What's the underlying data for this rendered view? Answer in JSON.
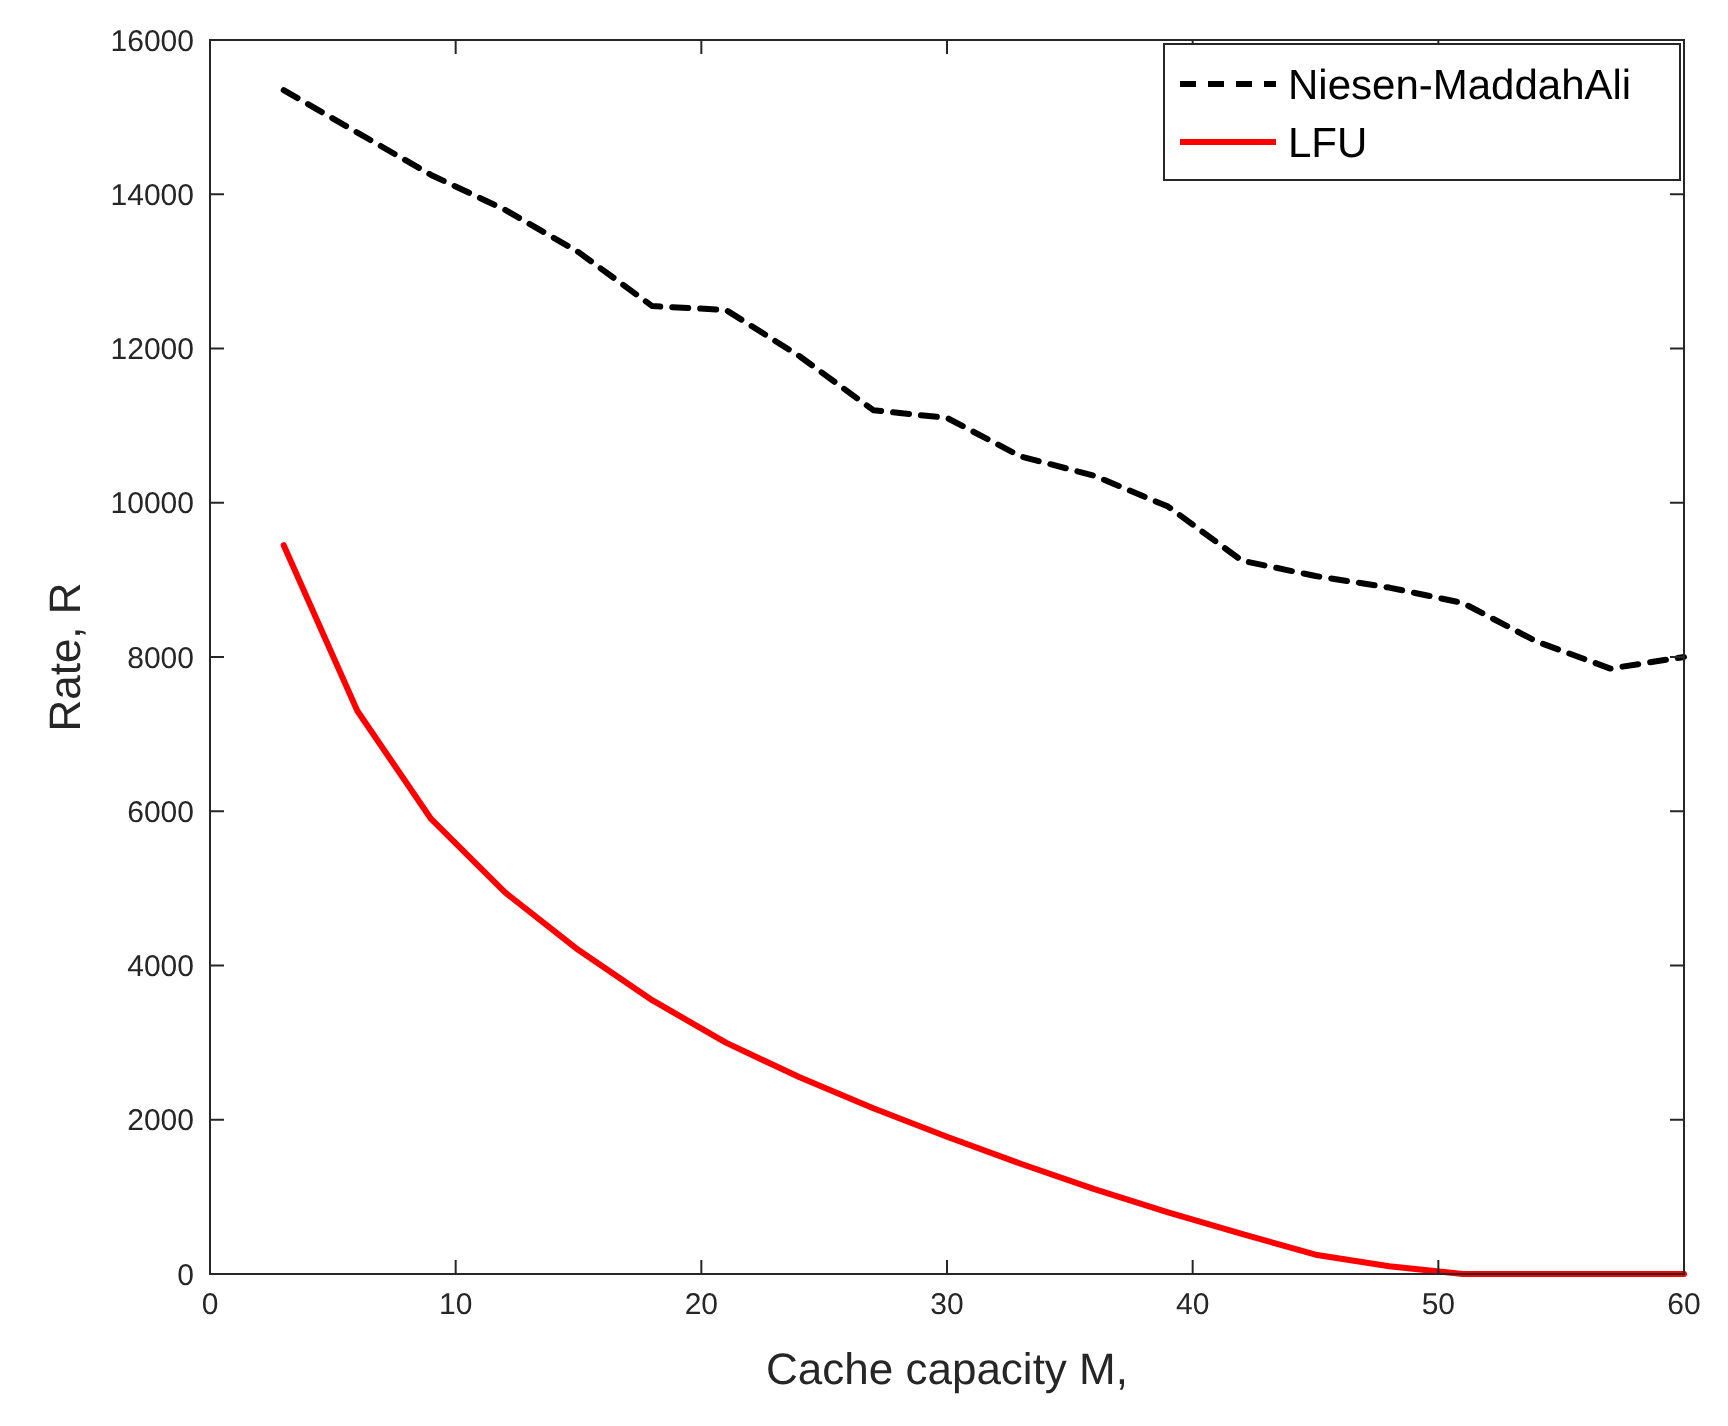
{
  "chart_data": {
    "type": "line",
    "xlabel": "Cache capacity M,",
    "ylabel": "Rate, R",
    "xlim": [
      0,
      60
    ],
    "ylim": [
      0,
      16000
    ],
    "xticks": [
      0,
      10,
      20,
      30,
      40,
      50,
      60
    ],
    "yticks": [
      0,
      2000,
      4000,
      6000,
      8000,
      10000,
      12000,
      14000,
      16000
    ],
    "grid": false,
    "legend": "top right",
    "marker": "none",
    "x": [
      3,
      6,
      9,
      12,
      15,
      18,
      21,
      24,
      27,
      30,
      33,
      36,
      39,
      42,
      45,
      48,
      51,
      54,
      57,
      60
    ],
    "series": [
      {
        "name": "Niesen-MaddahAli",
        "color": "#000000",
        "line_style": "dashed",
        "values": [
          15350,
          14800,
          14250,
          13800,
          13250,
          12550,
          12500,
          11900,
          11200,
          11100,
          10600,
          10350,
          9950,
          9250,
          9050,
          8900,
          8700,
          8200,
          7850,
          8000
        ]
      },
      {
        "name": "LFU",
        "color": "#ff0000",
        "line_style": "solid",
        "values": [
          9450,
          7300,
          5900,
          4950,
          4200,
          3550,
          3000,
          2550,
          2150,
          1780,
          1430,
          1100,
          800,
          520,
          250,
          100,
          0,
          0,
          0,
          0
        ]
      }
    ]
  }
}
